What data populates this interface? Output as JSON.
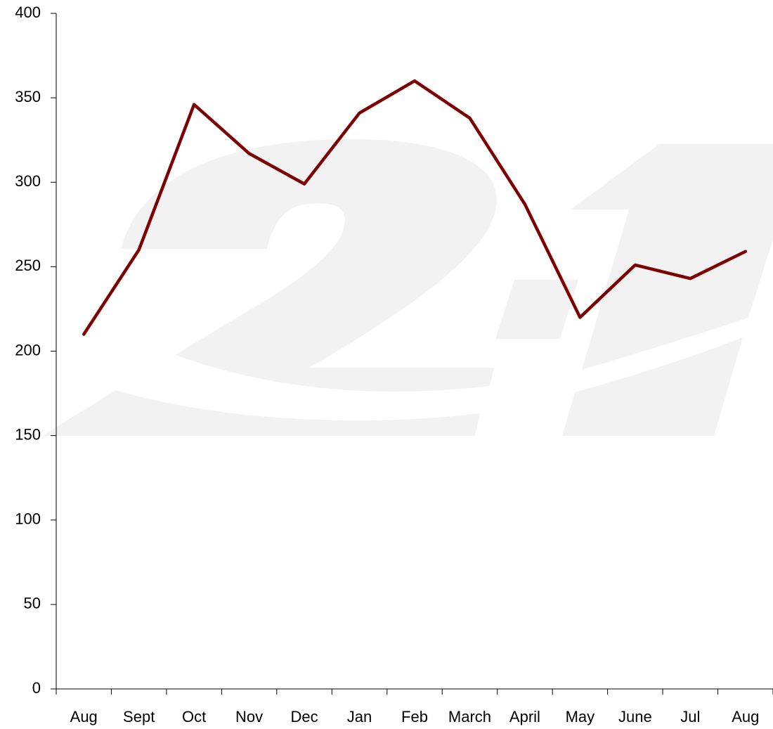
{
  "chart_data": {
    "type": "line",
    "categories": [
      "Aug",
      "Sept",
      "Oct",
      "Nov",
      "Dec",
      "Jan",
      "Feb",
      "March",
      "April",
      "May",
      "June",
      "Jul",
      "Aug"
    ],
    "series": [
      {
        "color": "#7f0000",
        "values": [
          210,
          260,
          346,
          317,
          299,
          341,
          360,
          338,
          287,
          220,
          251,
          243,
          259
        ]
      }
    ],
    "ylim": [
      0,
      400
    ],
    "yticks": [
      0,
      50,
      100,
      150,
      200,
      250,
      300,
      350,
      400
    ]
  }
}
